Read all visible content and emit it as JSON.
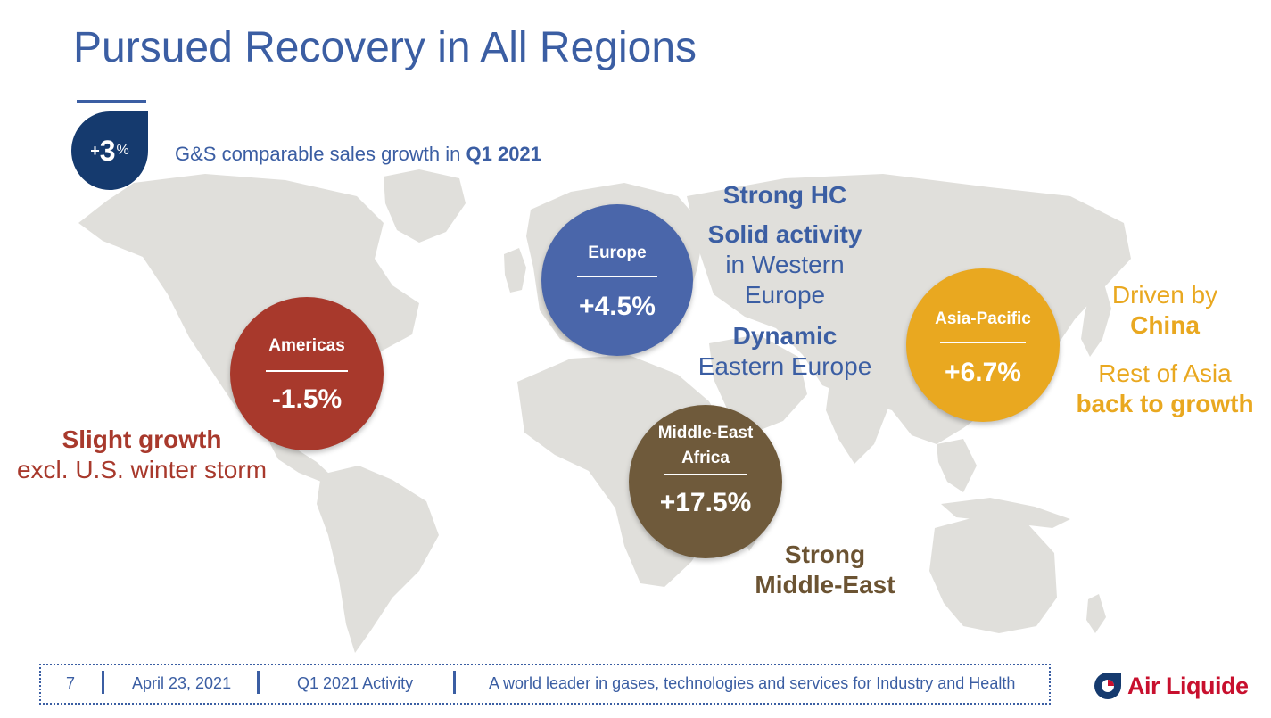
{
  "slide": {
    "title": "Pursued Recovery in All Regions",
    "badge": {
      "prefix": "+",
      "number": "3",
      "suffix": "%"
    },
    "subtitle_text": "G&S comparable sales growth in ",
    "subtitle_bold": "Q1 2021"
  },
  "regions": {
    "americas": {
      "name": "Americas",
      "value": "-1.5%"
    },
    "europe": {
      "name": "Europe",
      "value": "+4.5%"
    },
    "mea": {
      "name_line1": "Middle-East",
      "name_line2": "Africa",
      "value": "+17.5%"
    },
    "asia": {
      "name": "Asia-Pacific",
      "value": "+6.7%"
    }
  },
  "notes": {
    "americas": {
      "line1": "Slight growth",
      "line2": "excl. U.S. winter storm"
    },
    "europe": {
      "line1": "Strong HC",
      "line2": "Solid activity",
      "line3": "in Western",
      "line4": "Europe",
      "line5": "Dynamic",
      "line6": "Eastern Europe"
    },
    "mea": {
      "line1": "Strong",
      "line2": "Middle-East"
    },
    "asia": {
      "line1": "Driven by",
      "line2": "China",
      "line3": "Rest of Asia",
      "line4": "back to growth"
    }
  },
  "footer": {
    "page_number": "7",
    "date": "April 23, 2021",
    "section": "Q1 2021 Activity",
    "tagline": "A world leader in gases, technologies and services for Industry and Health"
  },
  "logo": {
    "text": "Air Liquide"
  },
  "colors": {
    "primary_blue": "#3b5ea3",
    "dark_blue": "#153a6e",
    "americas": "#a8392c",
    "europe": "#4a66aa",
    "mea": "#6f5a3b",
    "asia": "#e9a820",
    "map": "#e0dfdb"
  }
}
